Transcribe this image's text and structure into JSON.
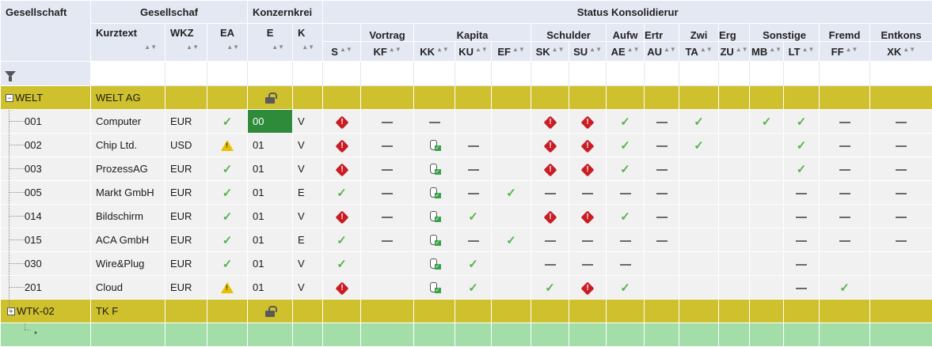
{
  "header": {
    "group_gesellschaft": "Gesellschaft",
    "group_gesellschaft2": "Gesellschaf",
    "group_konzernkreis": "Konzernkrei",
    "group_status": "Status Konsolidierur",
    "sub_vortrag": "Vortrag",
    "sub_kapita": "Kapita",
    "sub_schulder": "Schulder",
    "sub_aufw": "Aufw",
    "sub_ertr": "Ertr",
    "sub_zwi": "Zwi",
    "sub_erg": "Erg",
    "sub_sonstige": "Sonstige",
    "sub_fremd": "Fremd",
    "sub_entkons": "Entkons",
    "col_kurztext": "Kurztext",
    "col_wkz": "WKZ",
    "col_ea": "EA",
    "col_e": "E",
    "col_k": "K",
    "codes": [
      "S",
      "KF",
      "KK",
      "KU",
      "EF",
      "SK",
      "SU",
      "AE",
      "AU",
      "TA",
      "ZU",
      "MB",
      "LT",
      "FF",
      "XK"
    ]
  },
  "icons": {
    "check": "✓",
    "hand_check": "✓",
    "tree_expand": "+",
    "tree_collapse": "−"
  },
  "groups": [
    {
      "name": "WELT",
      "text": "WELT AG"
    },
    {
      "name": "WTK-02",
      "text": "TK F"
    }
  ],
  "rows": [
    {
      "id": "001",
      "text": "Computer",
      "wkz": "EUR",
      "ea": "check",
      "e": "00",
      "k": "V",
      "status": [
        "err",
        "dash",
        "dash",
        "",
        "",
        "err",
        "err",
        "check",
        "dash",
        "check",
        "",
        "check",
        "check",
        "dash",
        "dash"
      ]
    },
    {
      "id": "002",
      "text": "Chip Ltd.",
      "wkz": "USD",
      "ea": "warn",
      "e": "01",
      "k": "V",
      "status": [
        "err",
        "dash",
        "hand",
        "dash",
        "",
        "err",
        "err",
        "check",
        "dash",
        "check",
        "",
        "",
        "check",
        "dash",
        "dash"
      ]
    },
    {
      "id": "003",
      "text": "ProzessAG",
      "wkz": "EUR",
      "ea": "check",
      "e": "01",
      "k": "V",
      "status": [
        "err",
        "dash",
        "hand",
        "dash",
        "",
        "err",
        "err",
        "check",
        "dash",
        "",
        "",
        "",
        "check",
        "dash",
        "dash"
      ]
    },
    {
      "id": "005",
      "text": "Markt GmbH",
      "wkz": "EUR",
      "ea": "check",
      "e": "01",
      "k": "E",
      "status": [
        "check",
        "dash",
        "hand",
        "dash",
        "check",
        "dash",
        "dash",
        "dash",
        "dash",
        "",
        "",
        "",
        "dash",
        "dash",
        "dash"
      ]
    },
    {
      "id": "014",
      "text": "Bildschirm",
      "wkz": "EUR",
      "ea": "check",
      "e": "01",
      "k": "V",
      "status": [
        "err",
        "dash",
        "hand",
        "check",
        "",
        "err",
        "err",
        "check",
        "dash",
        "",
        "",
        "",
        "dash",
        "dash",
        "dash"
      ]
    },
    {
      "id": "015",
      "text": "ACA GmbH",
      "wkz": "EUR",
      "ea": "check",
      "e": "01",
      "k": "E",
      "status": [
        "check",
        "dash",
        "hand",
        "dash",
        "check",
        "dash",
        "dash",
        "dash",
        "dash",
        "",
        "",
        "",
        "dash",
        "dash",
        "dash"
      ]
    },
    {
      "id": "030",
      "text": "Wire&Plug",
      "wkz": "EUR",
      "ea": "check",
      "e": "01",
      "k": "V",
      "status": [
        "check",
        "",
        "hand",
        "check",
        "",
        "dash",
        "dash",
        "dash",
        "",
        "",
        "",
        "",
        "dash",
        "",
        ""
      ]
    },
    {
      "id": "201",
      "text": "Cloud",
      "wkz": "EUR",
      "ea": "warn",
      "e": "01",
      "k": "V",
      "status": [
        "err",
        "",
        "hand",
        "check",
        "",
        "check",
        "err",
        "check",
        "",
        "",
        "",
        "",
        "dash",
        "check",
        ""
      ]
    }
  ],
  "new_row": {
    "marker": "*"
  }
}
